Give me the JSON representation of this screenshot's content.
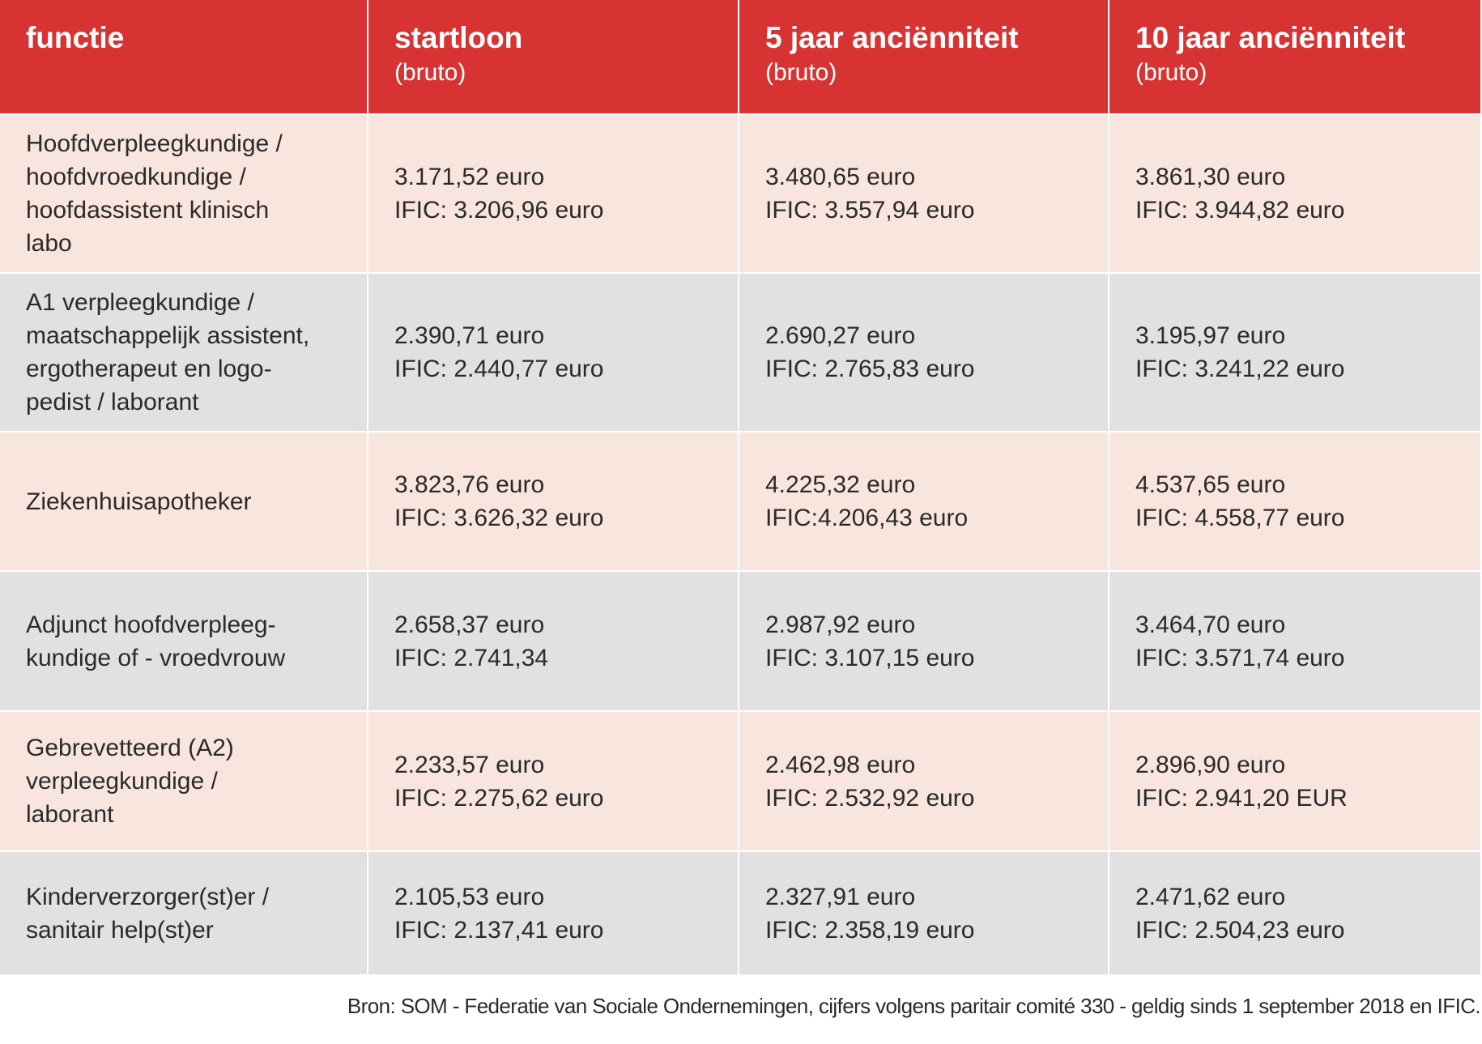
{
  "table": {
    "header": [
      {
        "title": "functie"
      },
      {
        "title": "startloon",
        "subtitle": "(bruto)"
      },
      {
        "title": "5 jaar anciënniteit",
        "subtitle": "(bruto)"
      },
      {
        "title": "10 jaar anciënniteit",
        "subtitle": "(bruto)"
      }
    ],
    "rows": [
      [
        [
          "Hoofdverpleegkundige /",
          "hoofdvroedkundige /",
          "hoofdassistent klinisch",
          "labo"
        ],
        [
          "3.171,52 euro",
          "IFIC: 3.206,96 euro"
        ],
        [
          "3.480,65 euro",
          "IFIC: 3.557,94 euro"
        ],
        [
          "3.861,30 euro",
          "IFIC: 3.944,82 euro"
        ]
      ],
      [
        [
          "A1 verpleegkundige /",
          "maatschappelijk assistent,",
          "ergotherapeut en logo-",
          "pedist / laborant"
        ],
        [
          "2.390,71 euro",
          "IFIC: 2.440,77 euro"
        ],
        [
          "2.690,27 euro",
          "IFIC: 2.765,83 euro"
        ],
        [
          "3.195,97 euro",
          "IFIC: 3.241,22 euro"
        ]
      ],
      [
        [
          "Ziekenhuisapotheker"
        ],
        [
          "3.823,76 euro",
          "IFIC: 3.626,32 euro"
        ],
        [
          "4.225,32 euro",
          "IFIC:4.206,43 euro"
        ],
        [
          "4.537,65 euro",
          "IFIC: 4.558,77 euro"
        ]
      ],
      [
        [
          "Adjunct hoofdverpleeg-",
          "kundige of - vroedvrouw"
        ],
        [
          "2.658,37 euro",
          "IFIC: 2.741,34"
        ],
        [
          "2.987,92 euro",
          "IFIC: 3.107,15 euro"
        ],
        [
          "3.464,70 euro",
          "IFIC: 3.571,74 euro"
        ]
      ],
      [
        [
          "Gebrevetteerd (A2)",
          "verpleegkundige /",
          "laborant"
        ],
        [
          "2.233,57 euro",
          "IFIC: 2.275,62 euro"
        ],
        [
          "2.462,98 euro",
          "IFIC: 2.532,92 euro"
        ],
        [
          "2.896,90 euro",
          "IFIC: 2.941,20 EUR"
        ]
      ],
      [
        [
          "Kinderverzorger(st)er /",
          "sanitair help(st)er"
        ],
        [
          "2.105,53 euro",
          "IFIC: 2.137,41 euro"
        ],
        [
          "2.327,91 euro",
          "IFIC: 2.358,19 euro"
        ],
        [
          "2.471,62 euro",
          "IFIC: 2.504,23 euro"
        ]
      ]
    ]
  },
  "footer": {
    "source": "Bron: SOM -  Federatie van Sociale Ondernemingen, cijfers volgens paritair comité 330 - geldig sinds 1 september 2018 en IFIC."
  }
}
